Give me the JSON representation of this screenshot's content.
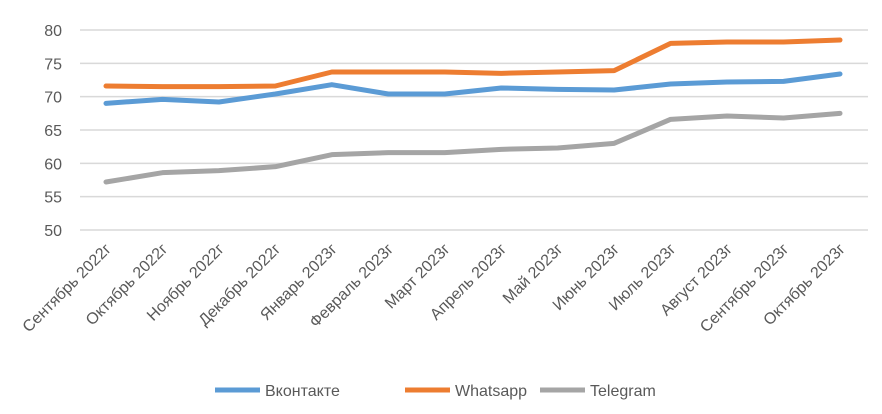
{
  "chart_data": {
    "type": "line",
    "title": "",
    "xlabel": "",
    "ylabel": "",
    "ylim": [
      50,
      80
    ],
    "yticks": [
      50,
      55,
      60,
      65,
      70,
      75,
      80
    ],
    "grid": true,
    "legend_position": "bottom",
    "categories": [
      "Сентябрь 2022г",
      "Октябрь 2022г",
      "Ноябрь 2022г",
      "Декабрь 2022г",
      "Январь 2023г",
      "Февраль 2023г",
      "Март 2023г",
      "Апрель 2023г",
      "Май 2023г",
      "Июнь 2023г",
      "Июль 2023г",
      "Август 2023г",
      "Сентябрь 2023г",
      "Октябрь 2023г"
    ],
    "series": [
      {
        "name": "Вконтакте",
        "color": "#5B9BD5",
        "values": [
          69.0,
          69.6,
          69.2,
          70.4,
          71.8,
          70.4,
          70.4,
          71.3,
          71.1,
          71.0,
          71.9,
          72.2,
          72.3,
          73.4
        ]
      },
      {
        "name": "Whatsapp",
        "color": "#ED7D31",
        "values": [
          71.6,
          71.5,
          71.5,
          71.6,
          73.7,
          73.7,
          73.7,
          73.5,
          73.7,
          73.9,
          78.0,
          78.2,
          78.2,
          78.5
        ]
      },
      {
        "name": "Telegram",
        "color": "#A5A5A5",
        "values": [
          57.2,
          58.6,
          58.9,
          59.5,
          61.3,
          61.6,
          61.6,
          62.1,
          62.3,
          63.0,
          66.6,
          67.1,
          66.8,
          67.5
        ]
      }
    ]
  }
}
